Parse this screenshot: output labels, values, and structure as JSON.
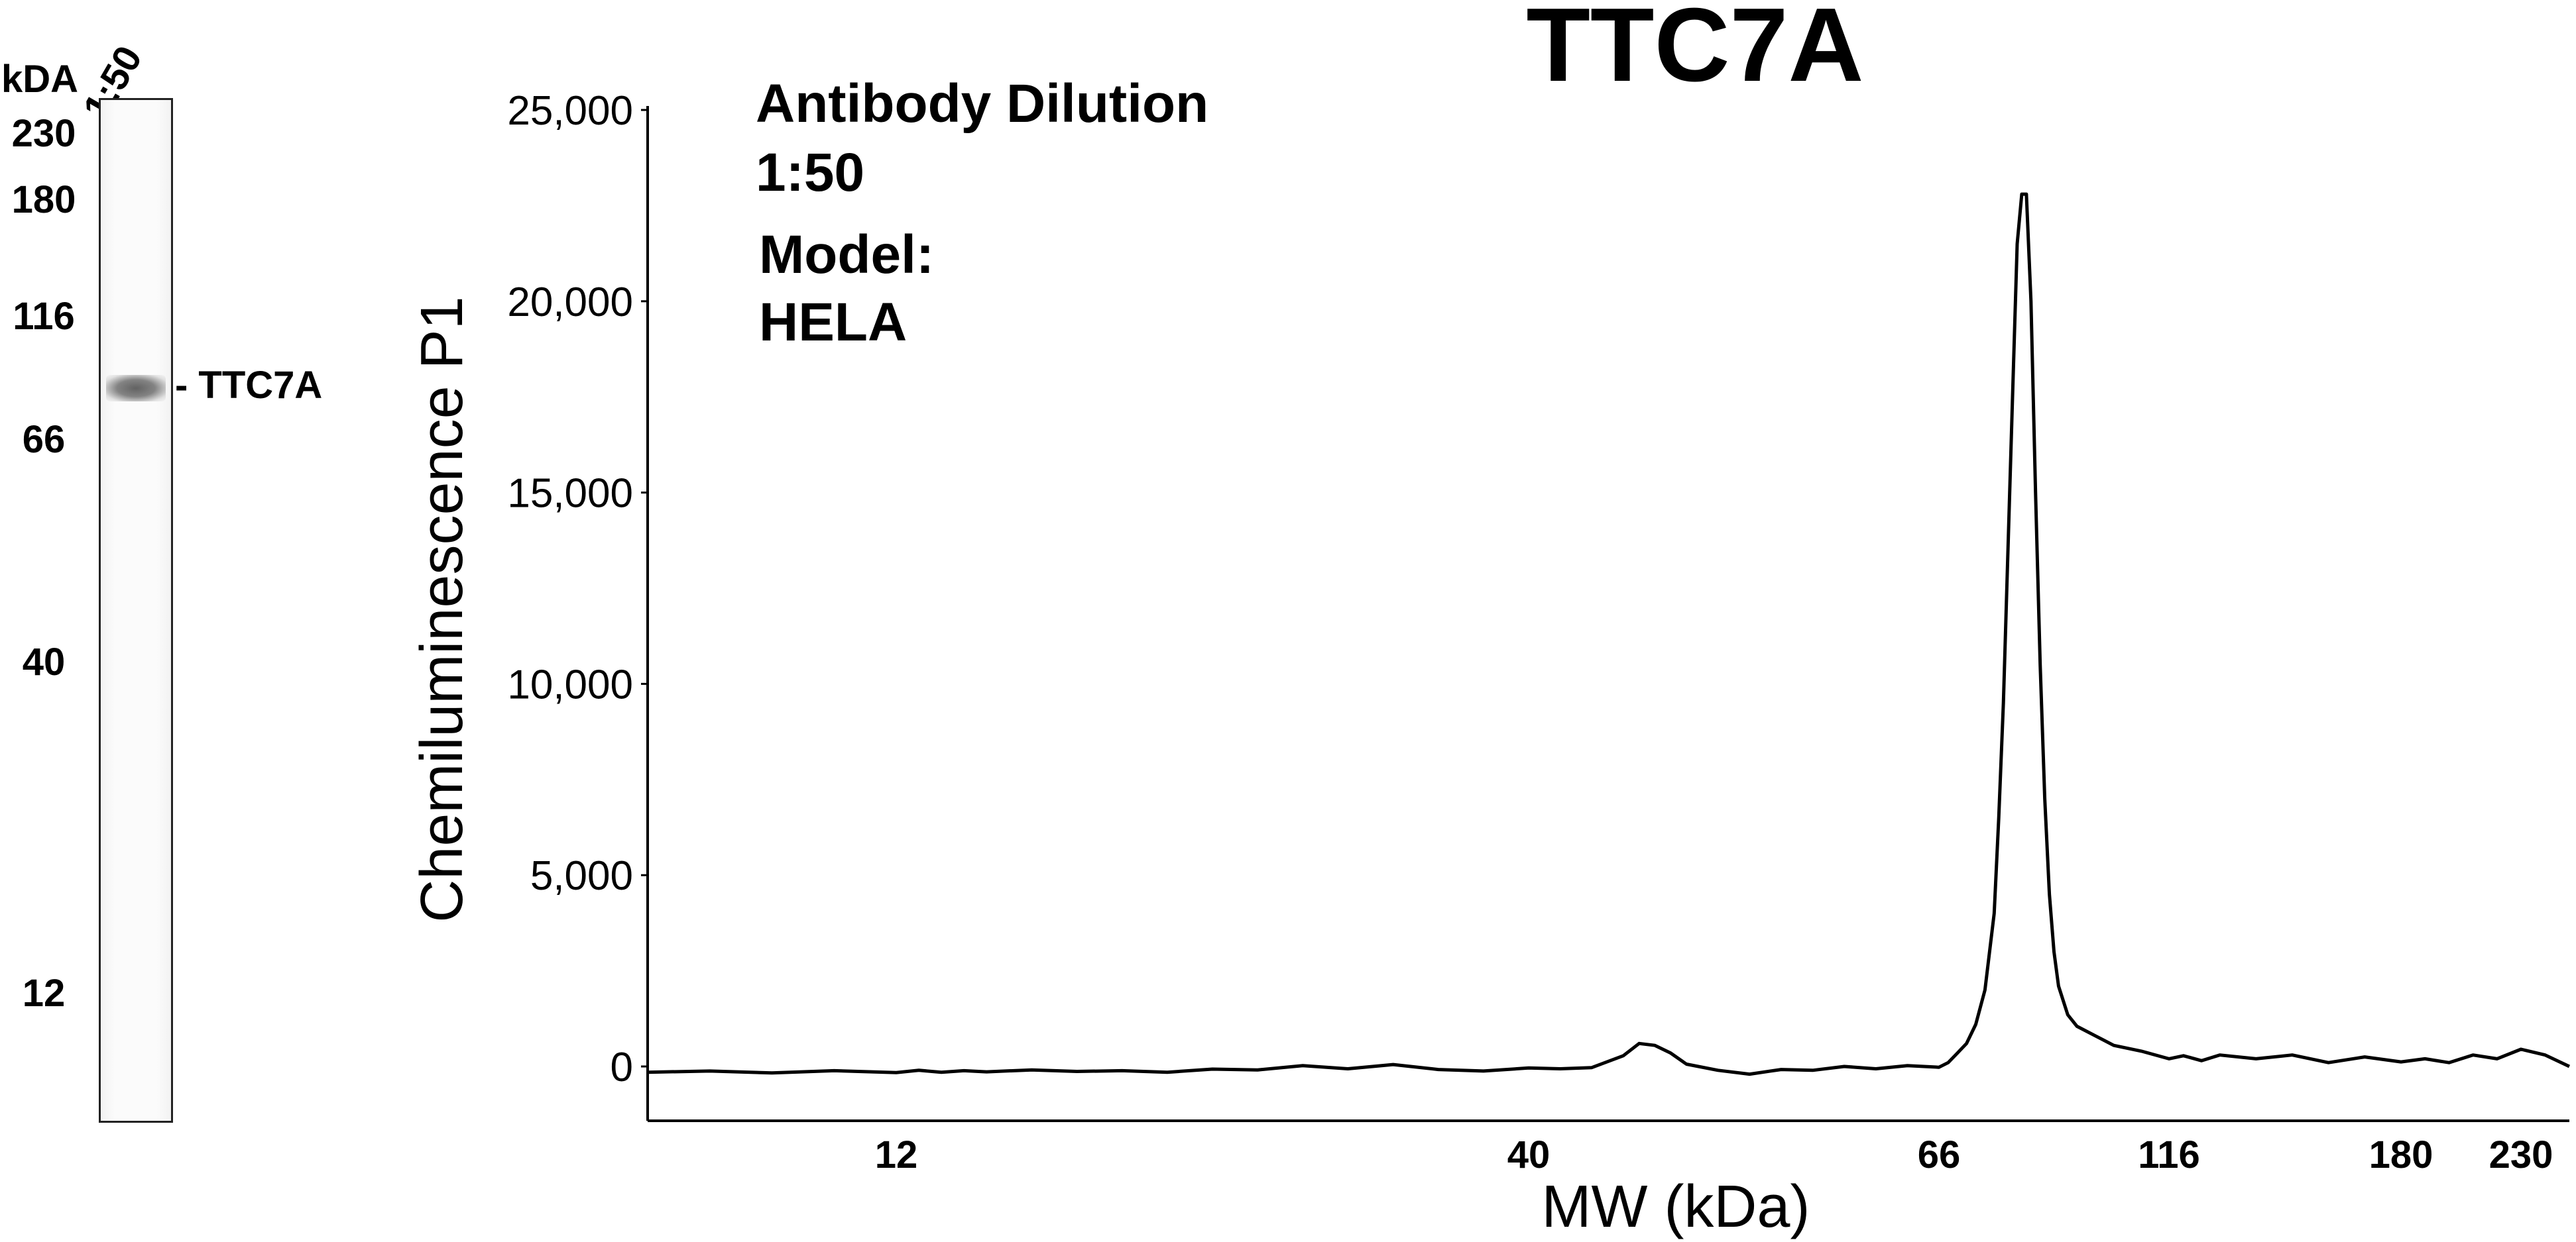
{
  "lane_panel": {
    "unit_label": "kDA",
    "lane_label": "1:50",
    "ladder": [
      {
        "label": "230",
        "kda": 230
      },
      {
        "label": "180",
        "kda": 180
      },
      {
        "label": "116",
        "kda": 116
      },
      {
        "label": "66",
        "kda": 66
      },
      {
        "label": "40",
        "kda": 40
      },
      {
        "label": "12",
        "kda": 12
      }
    ],
    "band_label": "- TTC7A",
    "band_kda": 86
  },
  "annotations": {
    "line1": "Antibody Dilution",
    "line2": "1:50",
    "line3": "Model:",
    "line4": "HELA"
  },
  "chart_data": {
    "type": "line",
    "title": "TTC7A",
    "xlabel": "MW (kDa)",
    "ylabel": "Chemiluminescence P1",
    "x_ticks": [
      {
        "label": "12",
        "kda": 12
      },
      {
        "label": "40",
        "kda": 40
      },
      {
        "label": "66",
        "kda": 66
      },
      {
        "label": "116",
        "kda": 116
      },
      {
        "label": "180",
        "kda": 180
      },
      {
        "label": "230",
        "kda": 230
      }
    ],
    "y_ticks": [
      {
        "label": "0",
        "value": 0
      },
      {
        "label": "5,000",
        "value": 5000
      },
      {
        "label": "10,000",
        "value": 10000
      },
      {
        "label": "15,000",
        "value": 15000
      },
      {
        "label": "20,000",
        "value": 20000
      },
      {
        "label": "25,000",
        "value": 25000
      }
    ],
    "ylim": [
      -1400,
      25400
    ],
    "grid": false,
    "series": [
      {
        "color": "#000000",
        "points": [
          [
            8,
            -150
          ],
          [
            9,
            -120
          ],
          [
            10,
            -170
          ],
          [
            11,
            -110
          ],
          [
            12,
            -160
          ],
          [
            13,
            -100
          ],
          [
            14,
            -150
          ],
          [
            15,
            -110
          ],
          [
            16,
            -140
          ],
          [
            18,
            -90
          ],
          [
            20,
            -130
          ],
          [
            22,
            -110
          ],
          [
            24,
            -150
          ],
          [
            26,
            -70
          ],
          [
            28,
            -90
          ],
          [
            30,
            20
          ],
          [
            32,
            -60
          ],
          [
            34,
            50
          ],
          [
            36,
            -80
          ],
          [
            38,
            -120
          ],
          [
            40,
            -40
          ],
          [
            42,
            -60
          ],
          [
            44,
            -30
          ],
          [
            46,
            280
          ],
          [
            47,
            600
          ],
          [
            48,
            550
          ],
          [
            49,
            350
          ],
          [
            50,
            60
          ],
          [
            52,
            -100
          ],
          [
            54,
            -200
          ],
          [
            56,
            -80
          ],
          [
            58,
            -100
          ],
          [
            60,
            0
          ],
          [
            62,
            -60
          ],
          [
            64,
            20
          ],
          [
            66,
            -20
          ],
          [
            68,
            100
          ],
          [
            70,
            350
          ],
          [
            72,
            600
          ],
          [
            74,
            1100
          ],
          [
            76,
            2000
          ],
          [
            78,
            4000
          ],
          [
            79,
            6500
          ],
          [
            80,
            9500
          ],
          [
            81,
            13500
          ],
          [
            82,
            17500
          ],
          [
            83,
            21500
          ],
          [
            84,
            22800
          ],
          [
            85,
            22800
          ],
          [
            86,
            20000
          ],
          [
            87,
            15000
          ],
          [
            88,
            10500
          ],
          [
            89,
            7000
          ],
          [
            90,
            4500
          ],
          [
            91,
            3000
          ],
          [
            92,
            2100
          ],
          [
            94,
            1350
          ],
          [
            96,
            1050
          ],
          [
            100,
            800
          ],
          [
            104,
            550
          ],
          [
            110,
            400
          ],
          [
            116,
            200
          ],
          [
            120,
            280
          ],
          [
            125,
            150
          ],
          [
            130,
            300
          ],
          [
            140,
            200
          ],
          [
            150,
            300
          ],
          [
            160,
            100
          ],
          [
            170,
            250
          ],
          [
            180,
            120
          ],
          [
            190,
            200
          ],
          [
            200,
            100
          ],
          [
            210,
            300
          ],
          [
            220,
            200
          ],
          [
            230,
            450
          ],
          [
            240,
            300
          ],
          [
            250,
            0
          ]
        ]
      }
    ]
  }
}
